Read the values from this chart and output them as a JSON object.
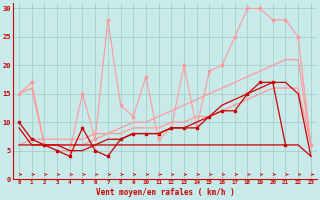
{
  "x": [
    0,
    1,
    2,
    3,
    4,
    5,
    6,
    7,
    8,
    9,
    10,
    11,
    12,
    13,
    14,
    15,
    16,
    17,
    18,
    19,
    20,
    21,
    22,
    23
  ],
  "rafales_light": [
    15,
    17,
    6,
    5,
    5,
    15,
    7,
    28,
    13,
    11,
    18,
    7,
    9,
    20,
    9,
    19,
    20,
    25,
    30,
    30,
    28,
    28,
    25,
    6
  ],
  "linear_low": [
    6,
    7,
    7,
    7,
    7,
    7,
    8,
    8,
    8,
    9,
    9,
    9,
    10,
    10,
    11,
    11,
    12,
    13,
    14,
    15,
    16,
    16,
    16,
    6
  ],
  "linear_high": [
    15,
    16,
    6,
    6,
    6,
    6,
    7,
    8,
    9,
    10,
    10,
    11,
    12,
    13,
    14,
    15,
    16,
    17,
    18,
    19,
    20,
    21,
    21,
    6
  ],
  "dark_jagged": [
    10,
    7,
    6,
    5,
    4,
    9,
    5,
    4,
    7,
    8,
    8,
    8,
    9,
    9,
    9,
    11,
    12,
    12,
    15,
    17,
    17,
    6,
    null,
    null
  ],
  "dark_smooth": [
    9,
    6,
    6,
    6,
    5,
    5,
    6,
    7,
    7,
    8,
    8,
    8,
    9,
    9,
    10,
    11,
    13,
    14,
    15,
    16,
    17,
    17,
    15,
    4
  ],
  "dark_flat": [
    6,
    6,
    6,
    6,
    6,
    6,
    6,
    6,
    6,
    6,
    6,
    6,
    6,
    6,
    6,
    6,
    6,
    6,
    6,
    6,
    6,
    6,
    6,
    4
  ],
  "bg_color": "#c8eaea",
  "grid_color": "#a0c8c8",
  "dc": "#cc0000",
  "lc": "#ff9999",
  "xlabel": "Vent moyen/en rafales ( km/h )",
  "ylim": [
    0,
    31
  ],
  "xlim": [
    -0.5,
    23.5
  ]
}
